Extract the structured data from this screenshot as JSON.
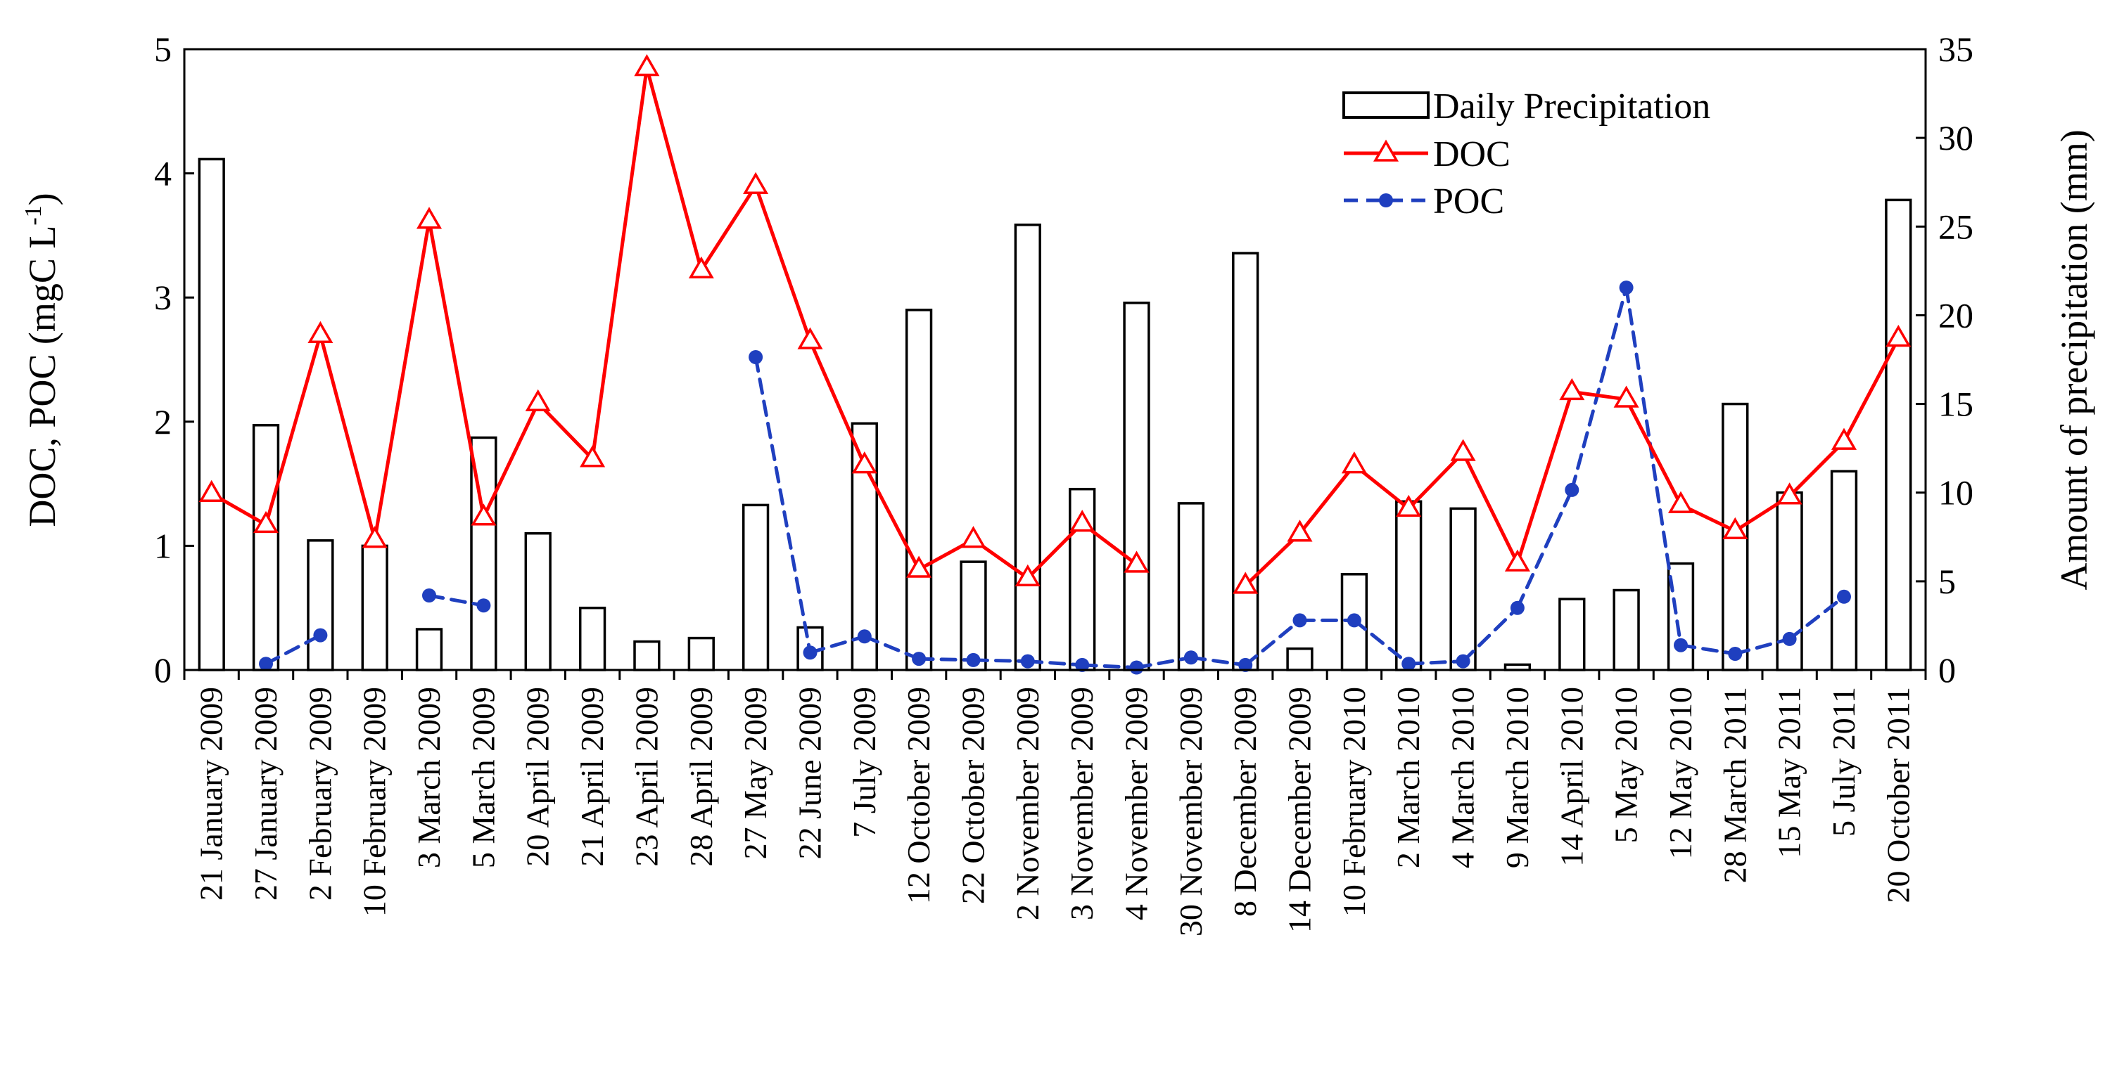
{
  "chart_data": {
    "type": "bar+line",
    "categories": [
      "21 January 2009",
      "27 January 2009",
      "2 February 2009",
      "10 February 2009",
      "3 March 2009",
      "5 March 2009",
      "20 April 2009",
      "21 April 2009",
      "23 April 2009",
      "28 April 2009",
      "27 May 2009",
      "22 June 2009",
      "7 July 2009",
      "12 October 2009",
      "22 October 2009",
      "2 November 2009",
      "3 November 2009",
      "4 November 2009",
      "30 November 2009",
      "8 December 2009",
      "14 December 2009",
      "10 February 2010",
      "2 March 2010",
      "4 March 2010",
      "9 March 2010",
      "14 April 2010",
      "5 May 2010",
      "12 May 2010",
      "28 March 2011",
      "15 May 2011",
      "5 July 2011",
      "20 October 2011"
    ],
    "y_left": {
      "label": "DOC, POC (mgC L",
      "label_sup": "-1",
      "label_end": ")",
      "range": [
        0,
        5
      ],
      "ticks": [
        "0",
        "1",
        "2",
        "3",
        "4",
        "5"
      ]
    },
    "y_right": {
      "label": "Amount of precipitation (mm)",
      "range": [
        0,
        35
      ],
      "ticks": [
        "0",
        "5",
        "10",
        "15",
        "20",
        "25",
        "30",
        "35"
      ]
    },
    "legend": {
      "position": "top-right",
      "items": [
        "Daily Precipitation",
        "DOC",
        "POC"
      ]
    },
    "series": [
      {
        "name": "Daily Precipitation",
        "kind": "bar",
        "axis": "right",
        "color": "#000000",
        "values": [
          28.8,
          13.8,
          7.3,
          7.0,
          2.3,
          13.1,
          7.7,
          3.5,
          1.6,
          1.8,
          9.3,
          2.4,
          13.9,
          20.3,
          6.1,
          25.1,
          10.2,
          20.7,
          9.4,
          23.5,
          1.2,
          5.4,
          9.5,
          9.1,
          0.3,
          4.0,
          4.5,
          6.0,
          15.0,
          10.0,
          11.2,
          26.5
        ]
      },
      {
        "name": "DOC",
        "kind": "line",
        "axis": "left",
        "color": "#ff0000",
        "marker": "triangle-open",
        "values": [
          1.42,
          1.17,
          2.7,
          1.05,
          3.62,
          1.23,
          2.15,
          1.7,
          4.85,
          3.22,
          3.9,
          2.65,
          1.65,
          0.81,
          1.05,
          0.74,
          1.18,
          0.85,
          null,
          0.68,
          1.1,
          1.65,
          1.3,
          1.75,
          0.86,
          2.24,
          2.18,
          1.33,
          1.12,
          1.4,
          1.84,
          2.67
        ]
      },
      {
        "name": "POC",
        "kind": "line",
        "axis": "left",
        "color": "#1f3fbf",
        "marker": "circle-filled",
        "dash": true,
        "values": [
          null,
          0.05,
          0.28,
          null,
          0.6,
          0.52,
          null,
          null,
          null,
          null,
          2.52,
          0.14,
          0.27,
          0.09,
          0.08,
          0.07,
          0.04,
          0.02,
          0.1,
          0.04,
          0.4,
          0.4,
          0.05,
          0.07,
          0.5,
          1.45,
          3.08,
          0.2,
          0.13,
          0.25,
          0.59,
          null
        ]
      }
    ]
  }
}
